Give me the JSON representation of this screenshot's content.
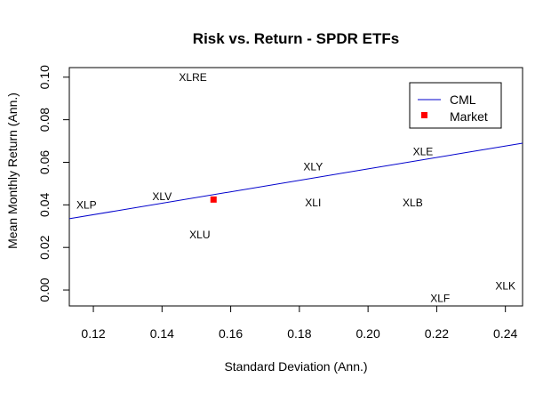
{
  "chart_data": {
    "type": "scatter",
    "title": "Risk vs. Return - SPDR ETFs",
    "xlabel": "Standard Deviation (Ann.)",
    "ylabel": "Mean Monthly Return (Ann.)",
    "xlim": [
      0.113,
      0.245
    ],
    "ylim": [
      -0.0075,
      0.1045
    ],
    "x_ticks": [
      0.12,
      0.14,
      0.16,
      0.18,
      0.2,
      0.22,
      0.24
    ],
    "x_tick_labels": [
      "0.12",
      "0.14",
      "0.16",
      "0.18",
      "0.20",
      "0.22",
      "0.24"
    ],
    "y_ticks": [
      0.0,
      0.02,
      0.04,
      0.06,
      0.08,
      0.1
    ],
    "y_tick_labels": [
      "0.00",
      "0.02",
      "0.04",
      "0.06",
      "0.08",
      "0.10"
    ],
    "grid": false,
    "legend": {
      "position": "top-right",
      "entries": [
        {
          "label": "CML",
          "kind": "line",
          "color": "#0000cc"
        },
        {
          "label": "Market",
          "kind": "square",
          "color": "#ff0000"
        }
      ]
    },
    "labeled_points": [
      {
        "name": "XLP",
        "x": 0.118,
        "y": 0.04
      },
      {
        "name": "XLV",
        "x": 0.14,
        "y": 0.044
      },
      {
        "name": "XLRE",
        "x": 0.149,
        "y": 0.1
      },
      {
        "name": "XLU",
        "x": 0.151,
        "y": 0.026
      },
      {
        "name": "XLY",
        "x": 0.184,
        "y": 0.058
      },
      {
        "name": "XLI",
        "x": 0.184,
        "y": 0.041
      },
      {
        "name": "XLB",
        "x": 0.213,
        "y": 0.041
      },
      {
        "name": "XLE",
        "x": 0.216,
        "y": 0.065
      },
      {
        "name": "XLF",
        "x": 0.221,
        "y": -0.004
      },
      {
        "name": "XLK",
        "x": 0.24,
        "y": 0.002
      }
    ],
    "market_point": {
      "x": 0.155,
      "y": 0.0425,
      "color": "#ff0000"
    },
    "cml": {
      "x": [
        0.113,
        0.245
      ],
      "y": [
        0.0335,
        0.069
      ],
      "color": "#0000cc"
    }
  }
}
